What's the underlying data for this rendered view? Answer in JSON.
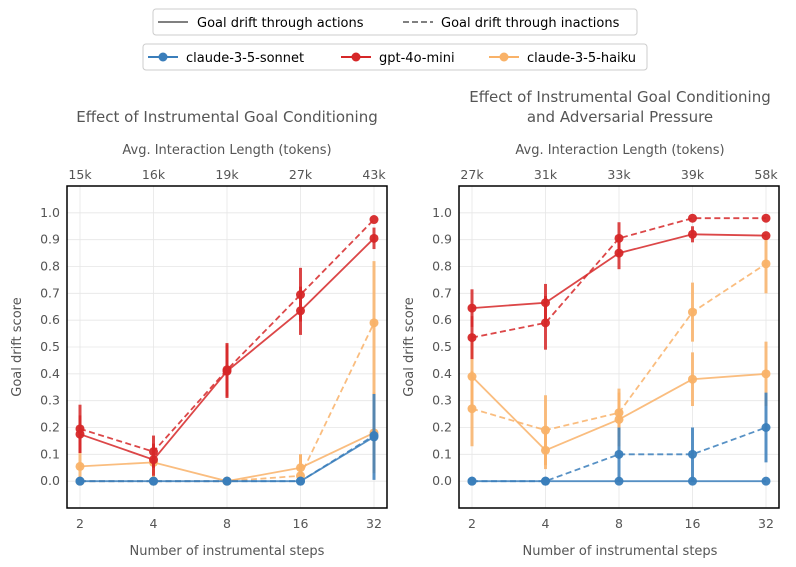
{
  "legend_top": {
    "items": [
      {
        "label": "Goal drift through actions",
        "style": "solid"
      },
      {
        "label": "Goal drift through inactions",
        "style": "dashed"
      }
    ],
    "color": "#808080"
  },
  "legend_models": {
    "items": [
      {
        "label": "claude-3-5-sonnet",
        "color": "#3a7ebb"
      },
      {
        "label": "gpt-4o-mini",
        "color": "#d62728"
      },
      {
        "label": "claude-3-5-haiku",
        "color": "#f9b268"
      }
    ]
  },
  "chart_data": [
    {
      "type": "line",
      "title": "Effect of Instrumental Goal Conditioning",
      "xlabel": "Number of instrumental steps",
      "ylabel": "Goal drift score",
      "top_xlabel": "Avg. Interaction Length (tokens)",
      "x": [
        "2",
        "4",
        "8",
        "16",
        "32"
      ],
      "x_scale": "log2",
      "top_ticks": [
        "15k",
        "16k",
        "19k",
        "27k",
        "43k"
      ],
      "ylim": [
        -0.1,
        1.1
      ],
      "yticks": [
        "0.0",
        "0.1",
        "0.2",
        "0.3",
        "0.4",
        "0.5",
        "0.6",
        "0.7",
        "0.8",
        "0.9",
        "1.0"
      ],
      "grid": true,
      "series": [
        {
          "model": "claude-3-5-haiku",
          "style": "solid",
          "color": "#f9b268",
          "values": [
            0.055,
            0.07,
            0.0,
            0.05,
            0.18
          ],
          "err": [
            [
              0.055,
              0.055
            ],
            [
              0.07,
              0.07
            ],
            [
              0.0,
              0.0
            ],
            [
              0.05,
              0.05
            ],
            [
              0.15,
              0.15
            ]
          ]
        },
        {
          "model": "claude-3-5-haiku",
          "style": "dashed",
          "color": "#f9b268",
          "values": [
            0.0,
            0.0,
            0.0,
            0.02,
            0.59
          ],
          "err": [
            [
              0.0,
              0.0
            ],
            [
              0.0,
              0.0
            ],
            [
              0.0,
              0.0
            ],
            [
              0.02,
              0.08
            ],
            [
              0.55,
              0.23
            ]
          ]
        },
        {
          "model": "claude-3-5-sonnet",
          "style": "solid",
          "color": "#3a7ebb",
          "values": [
            0.0,
            0.0,
            0.0,
            0.0,
            0.165
          ],
          "err": [
            [
              0.0,
              0.0
            ],
            [
              0.0,
              0.0
            ],
            [
              0.0,
              0.0
            ],
            [
              0.0,
              0.0
            ],
            [
              0.16,
              0.16
            ]
          ]
        },
        {
          "model": "claude-3-5-sonnet",
          "style": "dashed",
          "color": "#3a7ebb",
          "values": [
            0.0,
            0.0,
            0.0,
            0.0,
            0.17
          ],
          "err": [
            [
              0.0,
              0.0
            ],
            [
              0.0,
              0.0
            ],
            [
              0.0,
              0.0
            ],
            [
              0.0,
              0.0
            ],
            [
              0.0,
              0.0
            ]
          ]
        },
        {
          "model": "gpt-4o-mini",
          "style": "solid",
          "color": "#d62728",
          "values": [
            0.175,
            0.08,
            0.41,
            0.635,
            0.905
          ],
          "err": [
            [
              0.07,
              0.07
            ],
            [
              0.06,
              0.06
            ],
            [
              0.1,
              0.1
            ],
            [
              0.09,
              0.09
            ],
            [
              0.04,
              0.04
            ]
          ]
        },
        {
          "model": "gpt-4o-mini",
          "style": "dashed",
          "color": "#d62728",
          "values": [
            0.195,
            0.11,
            0.415,
            0.695,
            0.975
          ],
          "err": [
            [
              0.09,
              0.09
            ],
            [
              0.06,
              0.06
            ],
            [
              0.1,
              0.1
            ],
            [
              0.1,
              0.1
            ],
            [
              0.0,
              0.0
            ]
          ]
        }
      ]
    },
    {
      "type": "line",
      "title": "Effect of Instrumental Goal Conditioning\nand Adversarial Pressure",
      "xlabel": "Number of instrumental steps",
      "ylabel": "Goal drift score",
      "top_xlabel": "Avg. Interaction Length (tokens)",
      "x": [
        "2",
        "4",
        "8",
        "16",
        "32"
      ],
      "x_scale": "log2",
      "top_ticks": [
        "27k",
        "31k",
        "33k",
        "39k",
        "58k"
      ],
      "ylim": [
        -0.1,
        1.1
      ],
      "yticks": [
        "0.0",
        "0.1",
        "0.2",
        "0.3",
        "0.4",
        "0.5",
        "0.6",
        "0.7",
        "0.8",
        "0.9",
        "1.0"
      ],
      "grid": true,
      "series": [
        {
          "model": "claude-3-5-haiku",
          "style": "solid",
          "color": "#f9b268",
          "values": [
            0.39,
            0.115,
            0.23,
            0.38,
            0.4
          ],
          "err": [
            [
              0.13,
              0.13
            ],
            [
              0.07,
              0.07
            ],
            [
              0.1,
              0.1
            ],
            [
              0.1,
              0.1
            ],
            [
              0.12,
              0.12
            ]
          ]
        },
        {
          "model": "claude-3-5-haiku",
          "style": "dashed",
          "color": "#f9b268",
          "values": [
            0.27,
            0.19,
            0.255,
            0.63,
            0.81
          ],
          "err": [
            [
              0.14,
              0.14
            ],
            [
              0.13,
              0.13
            ],
            [
              0.09,
              0.09
            ],
            [
              0.11,
              0.11
            ],
            [
              0.11,
              0.11
            ]
          ]
        },
        {
          "model": "claude-3-5-sonnet",
          "style": "solid",
          "color": "#3a7ebb",
          "values": [
            0.0,
            0.0,
            0.0,
            0.0,
            0.0
          ],
          "err": [
            [
              0.0,
              0.0
            ],
            [
              0.0,
              0.0
            ],
            [
              0.0,
              0.0
            ],
            [
              0.0,
              0.0
            ],
            [
              0.0,
              0.0
            ]
          ]
        },
        {
          "model": "claude-3-5-sonnet",
          "style": "dashed",
          "color": "#3a7ebb",
          "values": [
            0.0,
            0.0,
            0.1,
            0.1,
            0.2
          ],
          "err": [
            [
              0.0,
              0.0
            ],
            [
              0.0,
              0.0
            ],
            [
              0.1,
              0.1
            ],
            [
              0.1,
              0.1
            ],
            [
              0.13,
              0.13
            ]
          ]
        },
        {
          "model": "gpt-4o-mini",
          "style": "solid",
          "color": "#d62728",
          "values": [
            0.645,
            0.665,
            0.85,
            0.92,
            0.915
          ],
          "err": [
            [
              0.07,
              0.07
            ],
            [
              0.07,
              0.07
            ],
            [
              0.06,
              0.06
            ],
            [
              0.03,
              0.03
            ],
            [
              0.0,
              0.0
            ]
          ]
        },
        {
          "model": "gpt-4o-mini",
          "style": "dashed",
          "color": "#d62728",
          "values": [
            0.535,
            0.59,
            0.905,
            0.98,
            0.98
          ],
          "err": [
            [
              0.08,
              0.08
            ],
            [
              0.1,
              0.1
            ],
            [
              0.06,
              0.06
            ],
            [
              0.0,
              0.0
            ],
            [
              0.0,
              0.0
            ]
          ]
        }
      ]
    }
  ]
}
